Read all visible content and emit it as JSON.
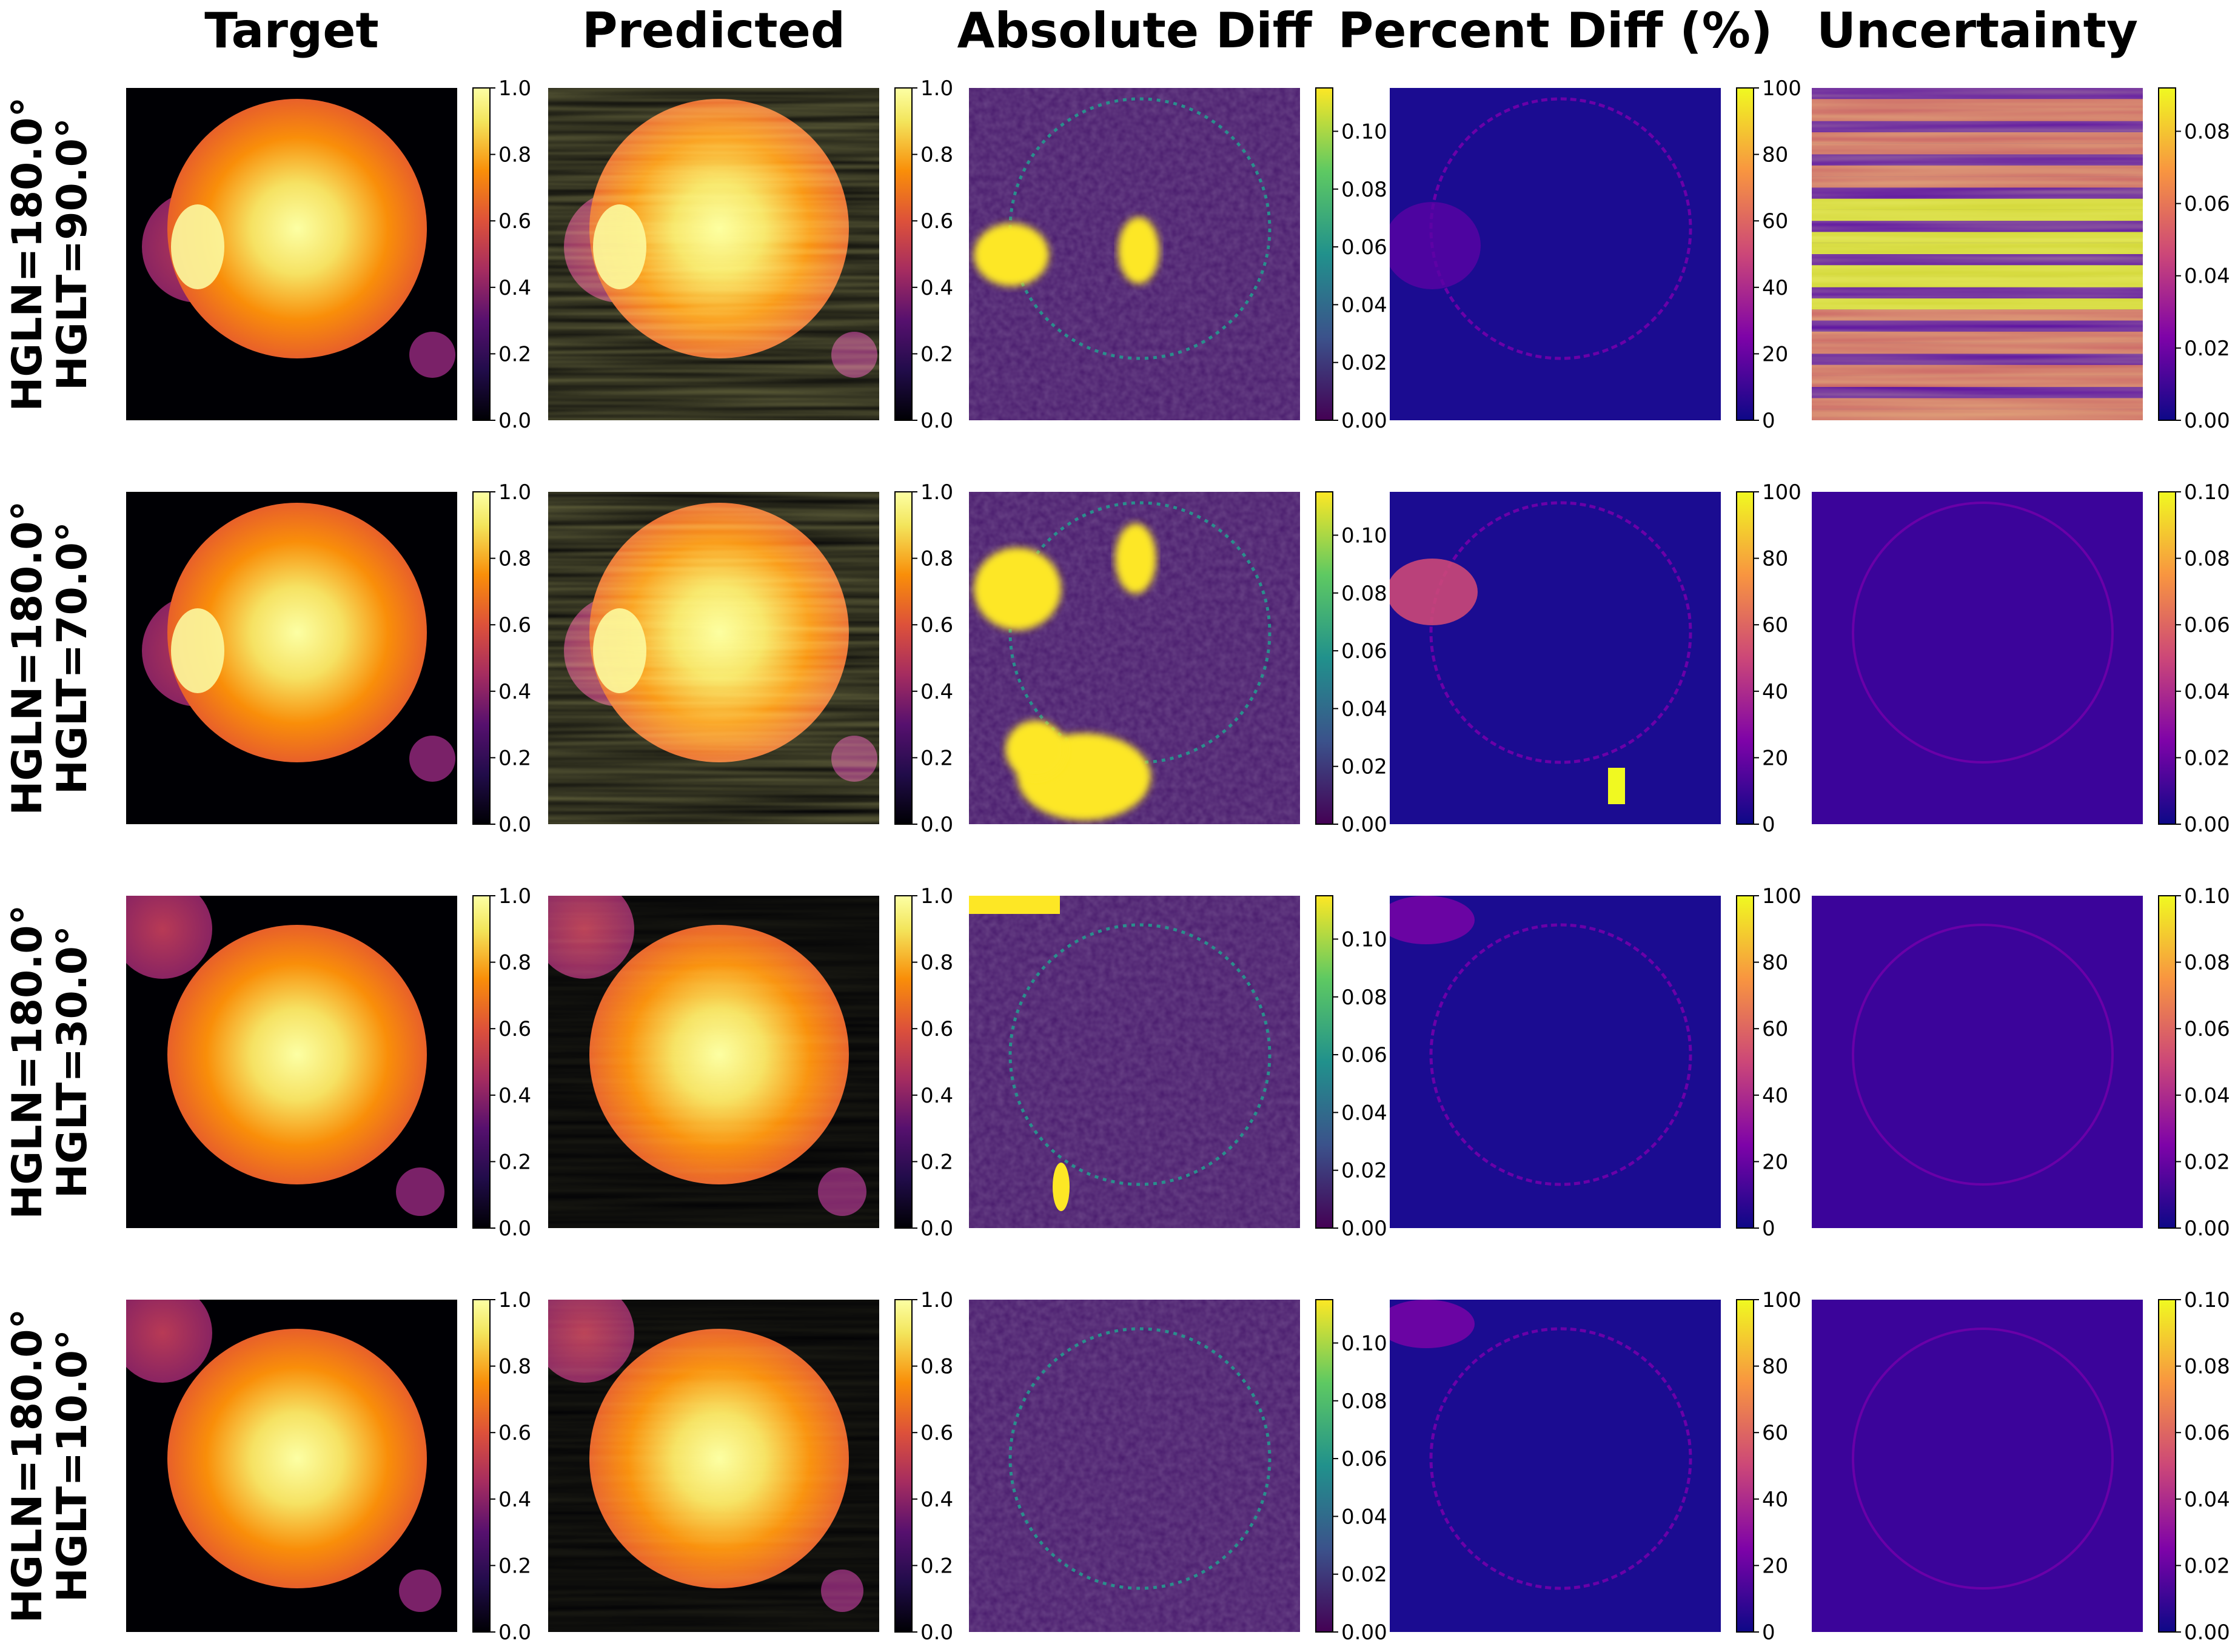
{
  "chart_data": {
    "type": "heatmap",
    "columns": [
      {
        "title": "Target",
        "colormap": "inferno",
        "range": [
          0,
          1.0
        ],
        "ticks": [
          "0.0",
          "0.2",
          "0.4",
          "0.6",
          "0.8",
          "1.0"
        ]
      },
      {
        "title": "Predicted",
        "colormap": "inferno",
        "range": [
          0,
          1.0
        ],
        "ticks": [
          "0.0",
          "0.2",
          "0.4",
          "0.6",
          "0.8",
          "1.0"
        ]
      },
      {
        "title": "Absolute Diff",
        "colormap": "viridis",
        "range": [
          0,
          0.115
        ],
        "ticks": [
          "0.00",
          "0.02",
          "0.04",
          "0.06",
          "0.08",
          "0.10"
        ]
      },
      {
        "title": "Percent Diff (%)",
        "colormap": "plasma",
        "range": [
          0,
          100
        ],
        "ticks": [
          "0",
          "20",
          "40",
          "60",
          "80",
          "100"
        ]
      },
      {
        "title": "Uncertainty",
        "colormap": "plasma",
        "range": [
          0,
          0.1
        ],
        "ticks": [
          "0.00",
          "0.02",
          "0.04",
          "0.06",
          "0.08",
          "0.10"
        ]
      }
    ],
    "rows": [
      {
        "line1": "HGLN=180.0°",
        "line2": "HGLT=90.0°",
        "uncertainty_range": [
          0,
          0.092
        ],
        "uncertainty_ticks": [
          "0.00",
          "0.02",
          "0.04",
          "0.06",
          "0.08"
        ]
      },
      {
        "line1": "HGLN=180.0°",
        "line2": "HGLT=70.0°"
      },
      {
        "line1": "HGLN=180.0°",
        "line2": "HGLT=30.0°"
      },
      {
        "line1": "HGLN=180.0°",
        "line2": "HGLT=10.0°"
      }
    ]
  }
}
